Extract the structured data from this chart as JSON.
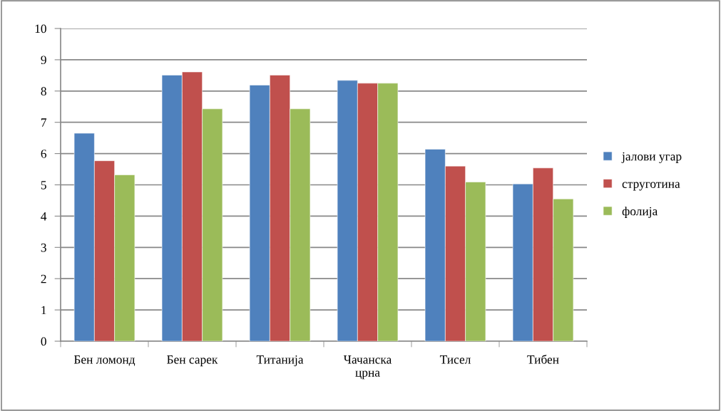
{
  "chart_data": {
    "type": "bar",
    "categories": [
      "Бен ломонд",
      "Бен сарек",
      "Титанија",
      "Чачанска\nцрна",
      "Тисел",
      "Тибен"
    ],
    "series": [
      {
        "name": "јалови угар",
        "color": "#4f81bd",
        "values": [
          6.65,
          8.51,
          8.19,
          8.34,
          6.14,
          5.03
        ]
      },
      {
        "name": "струготина",
        "color": "#c0504d",
        "values": [
          5.77,
          8.61,
          8.51,
          8.25,
          5.6,
          5.54
        ]
      },
      {
        "name": "фолија",
        "color": "#9bbb59",
        "values": [
          5.32,
          7.43,
          7.43,
          8.25,
          5.09,
          4.55
        ]
      }
    ],
    "ylim": [
      0,
      10
    ],
    "yticks": [
      0,
      1,
      2,
      3,
      4,
      5,
      6,
      7,
      8,
      9,
      10
    ],
    "grid": "y",
    "legend": "right"
  }
}
